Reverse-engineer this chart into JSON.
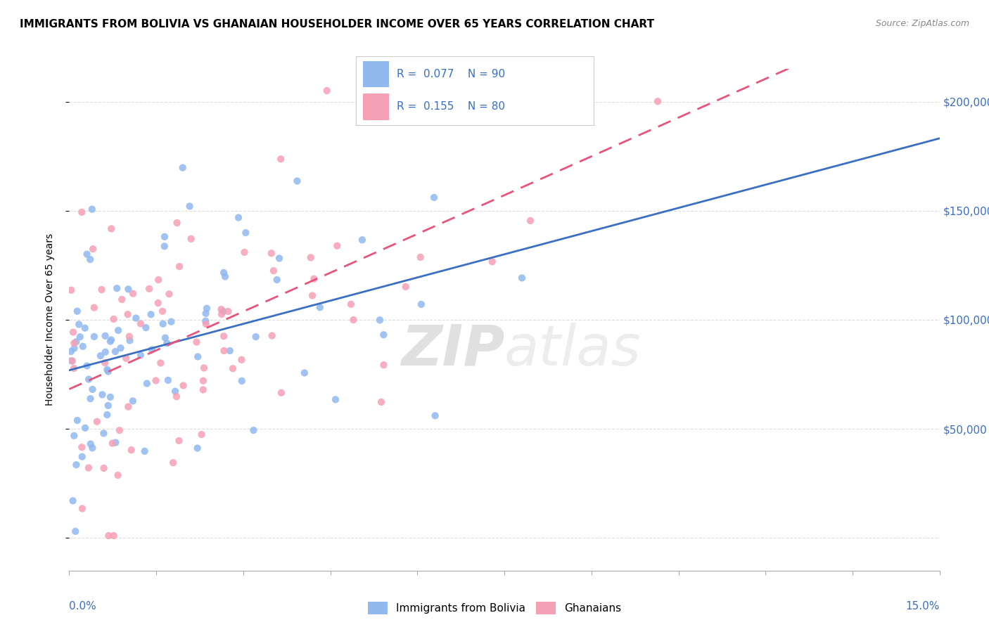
{
  "title": "IMMIGRANTS FROM BOLIVIA VS GHANAIAN HOUSEHOLDER INCOME OVER 65 YEARS CORRELATION CHART",
  "source": "Source: ZipAtlas.com",
  "ylabel": "Householder Income Over 65 years",
  "watermark_zip": "ZIP",
  "watermark_atlas": "atlas",
  "legend1_label": "Immigrants from Bolivia",
  "legend2_label": "Ghanaians",
  "series1": {
    "name": "Immigrants from Bolivia",
    "color": "#91b9f0",
    "R": 0.077,
    "N": 90,
    "line_color": "#3a6fc4"
  },
  "series2": {
    "name": "Ghanaians",
    "color": "#f5a0b5",
    "R": 0.155,
    "N": 80,
    "line_color": "#e8547a"
  },
  "yticks": [
    0,
    50000,
    100000,
    150000,
    200000
  ],
  "ytick_labels": [
    "",
    "$50,000",
    "$100,000",
    "$150,000",
    "$200,000"
  ],
  "background_color": "#ffffff",
  "grid_color": "#dddddd",
  "title_fontsize": 11,
  "source_fontsize": 9,
  "axis_label_fontsize": 10,
  "tick_fontsize": 11
}
